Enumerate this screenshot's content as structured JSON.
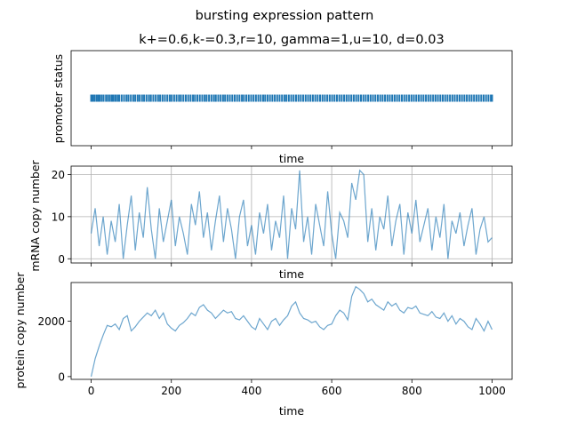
{
  "figure": {
    "suptitle": "bursting expression pattern",
    "title": "k+=0.6,k-=0.3,r=10, gamma=1,u=10, d=0.03"
  },
  "chart_data": [
    {
      "type": "line",
      "panel": "promoter",
      "xlabel": "time",
      "ylabel": "promoter status",
      "xlim": [
        -50,
        1050
      ],
      "grid": false,
      "y_ticks_shown": false,
      "x_ticklabels_shown": false,
      "series_color": "#1f77b4",
      "events_x": [
        0,
        4,
        8,
        13,
        17,
        21,
        26,
        31,
        37,
        42,
        47,
        52,
        56,
        61,
        66,
        70,
        76,
        82,
        88,
        93,
        99,
        105,
        110,
        116,
        121,
        127,
        132,
        138,
        144,
        149,
        155,
        161,
        167,
        172,
        178,
        184,
        190,
        196,
        201,
        207,
        213,
        219,
        224,
        230,
        236,
        242,
        248,
        254,
        259,
        265,
        271,
        277,
        283,
        288,
        294,
        300,
        306,
        311,
        317,
        323,
        329,
        334,
        340,
        346,
        352,
        358,
        364,
        370,
        376,
        381,
        387,
        393,
        399,
        405,
        411,
        417,
        423,
        429,
        434,
        440,
        446,
        452,
        458,
        464,
        470,
        476,
        482,
        487,
        493,
        499,
        505,
        511,
        517,
        523,
        529,
        535,
        541,
        547,
        553,
        559,
        565,
        571,
        577,
        583,
        589,
        595,
        601,
        607,
        613,
        619,
        625,
        631,
        637,
        643,
        649,
        655,
        661,
        667,
        673,
        679,
        685,
        691,
        697,
        703,
        709,
        715,
        721,
        727,
        733,
        739,
        745,
        751,
        757,
        763,
        769,
        775,
        781,
        787,
        793,
        799,
        805,
        811,
        817,
        823,
        829,
        835,
        841,
        847,
        853,
        859,
        865,
        871,
        877,
        883,
        889,
        895,
        901,
        907,
        913,
        919,
        925,
        931,
        937,
        943,
        949,
        955,
        961,
        967,
        973,
        979,
        985,
        991,
        997,
        1000
      ]
    },
    {
      "type": "line",
      "panel": "mrna",
      "xlabel": "time",
      "ylabel": "mRNA copy number",
      "xlim": [
        -50,
        1050
      ],
      "ylim": [
        -1,
        22
      ],
      "yticks": [
        0,
        10,
        20
      ],
      "grid": true,
      "x_ticklabels_shown": false,
      "series_color": "#1f77b4",
      "x": [
        0,
        10,
        20,
        30,
        40,
        50,
        60,
        70,
        80,
        90,
        100,
        110,
        120,
        130,
        140,
        150,
        160,
        170,
        180,
        190,
        200,
        210,
        220,
        230,
        240,
        250,
        260,
        270,
        280,
        290,
        300,
        310,
        320,
        330,
        340,
        350,
        360,
        370,
        380,
        390,
        400,
        410,
        420,
        430,
        440,
        450,
        460,
        470,
        480,
        490,
        500,
        510,
        520,
        530,
        540,
        550,
        560,
        570,
        580,
        590,
        600,
        610,
        620,
        630,
        640,
        650,
        660,
        670,
        680,
        690,
        700,
        710,
        720,
        730,
        740,
        750,
        760,
        770,
        780,
        790,
        800,
        810,
        820,
        830,
        840,
        850,
        860,
        870,
        880,
        890,
        900,
        910,
        920,
        930,
        940,
        950,
        960,
        970,
        980,
        990,
        1000
      ],
      "y": [
        6,
        12,
        3,
        10,
        1,
        9,
        4,
        13,
        0,
        8,
        15,
        2,
        11,
        5,
        17,
        7,
        0,
        12,
        4,
        9,
        14,
        3,
        10,
        6,
        1,
        13,
        8,
        16,
        5,
        11,
        2,
        9,
        15,
        4,
        12,
        7,
        0,
        10,
        14,
        3,
        8,
        1,
        11,
        6,
        13,
        2,
        9,
        5,
        15,
        0,
        12,
        7,
        21,
        4,
        10,
        1,
        13,
        8,
        3,
        16,
        6,
        0,
        11,
        9,
        5,
        18,
        14,
        21,
        20,
        4,
        12,
        2,
        10,
        7,
        15,
        3,
        9,
        13,
        1,
        11,
        6,
        14,
        4,
        8,
        12,
        2,
        10,
        5,
        13,
        0,
        9,
        6,
        11,
        3,
        8,
        12,
        1,
        7,
        10,
        4,
        5
      ]
    },
    {
      "type": "line",
      "panel": "protein",
      "xlabel": "time",
      "ylabel": "protein copy number",
      "xlim": [
        -50,
        1050
      ],
      "ylim": [
        -100,
        3400
      ],
      "yticks": [
        0,
        2000
      ],
      "xticks": [
        0,
        200,
        400,
        600,
        800,
        1000
      ],
      "grid": false,
      "series_color": "#1f77b4",
      "x": [
        0,
        10,
        20,
        30,
        40,
        50,
        60,
        70,
        80,
        90,
        100,
        110,
        120,
        130,
        140,
        150,
        160,
        170,
        180,
        190,
        200,
        210,
        220,
        230,
        240,
        250,
        260,
        270,
        280,
        290,
        300,
        310,
        320,
        330,
        340,
        350,
        360,
        370,
        380,
        390,
        400,
        410,
        420,
        430,
        440,
        450,
        460,
        470,
        480,
        490,
        500,
        510,
        520,
        530,
        540,
        550,
        560,
        570,
        580,
        590,
        600,
        610,
        620,
        630,
        640,
        650,
        660,
        670,
        680,
        690,
        700,
        710,
        720,
        730,
        740,
        750,
        760,
        770,
        780,
        790,
        800,
        810,
        820,
        830,
        840,
        850,
        860,
        870,
        880,
        890,
        900,
        910,
        920,
        930,
        940,
        950,
        960,
        970,
        980,
        990,
        1000
      ],
      "y": [
        0,
        650,
        1100,
        1500,
        1850,
        1800,
        1900,
        1700,
        2100,
        2200,
        1650,
        1800,
        2000,
        2150,
        2300,
        2200,
        2400,
        2100,
        2300,
        1900,
        1750,
        1650,
        1850,
        1950,
        2100,
        2300,
        2200,
        2500,
        2600,
        2400,
        2300,
        2100,
        2250,
        2400,
        2300,
        2350,
        2100,
        2050,
        2200,
        2000,
        1800,
        1700,
        2100,
        1900,
        1700,
        2000,
        2100,
        1850,
        2050,
        2200,
        2550,
        2700,
        2300,
        2100,
        2050,
        1950,
        2000,
        1800,
        1700,
        1850,
        1900,
        2200,
        2400,
        2300,
        2050,
        2900,
        3250,
        3150,
        3000,
        2700,
        2800,
        2600,
        2500,
        2400,
        2700,
        2550,
        2650,
        2400,
        2300,
        2500,
        2450,
        2550,
        2300,
        2250,
        2200,
        2350,
        2150,
        2100,
        2300,
        2000,
        2200,
        1900,
        2100,
        2000,
        1800,
        1700,
        2100,
        1900,
        1650,
        2000,
        1700
      ]
    }
  ]
}
